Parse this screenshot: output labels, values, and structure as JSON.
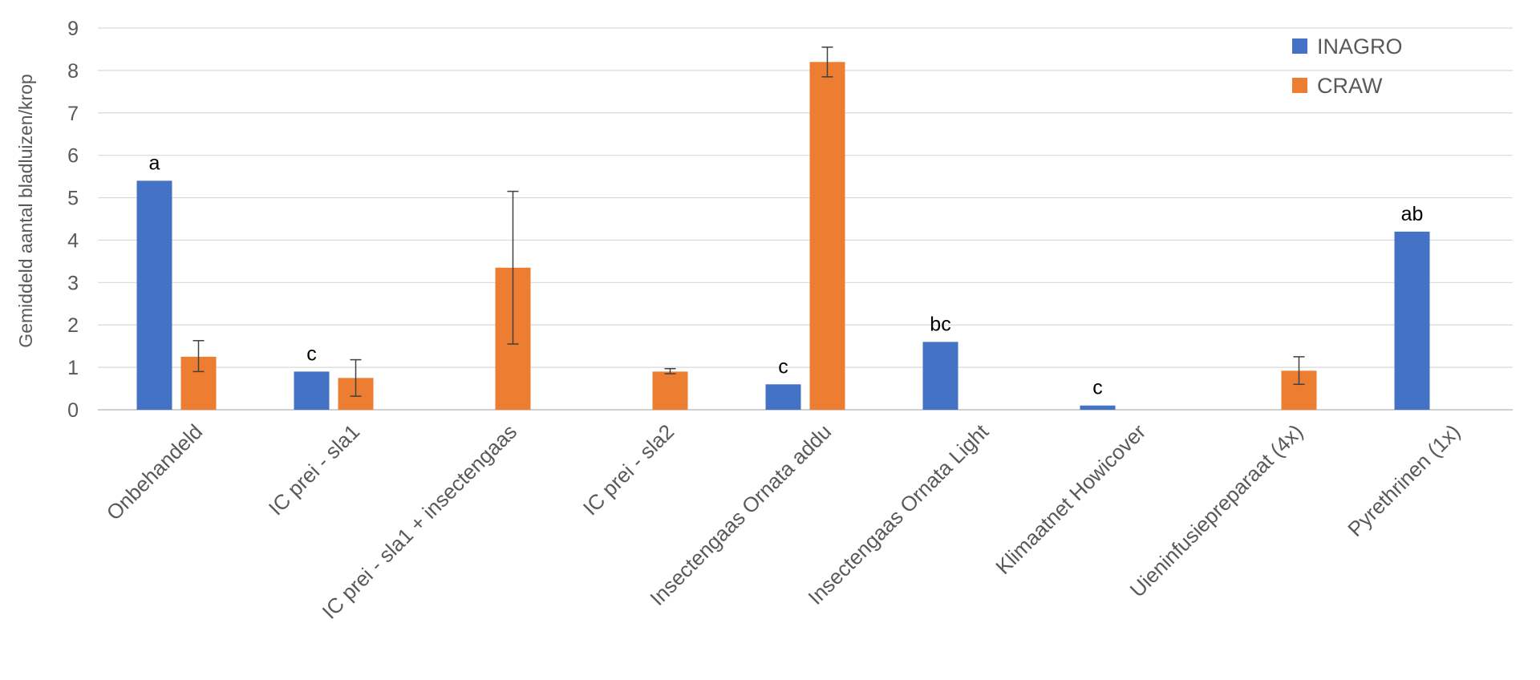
{
  "chart_data": {
    "type": "bar",
    "title": "",
    "xlabel": "",
    "ylabel": "Gemiddeld aantal bladluizen/krop",
    "ylim": [
      0,
      9
    ],
    "yticks": [
      0,
      1,
      2,
      3,
      4,
      5,
      6,
      7,
      8,
      9
    ],
    "grid": true,
    "legend_position": "top-right",
    "categories": [
      "Onbehandeld",
      "IC prei - sla1",
      "IC prei - sla1 + insectengaas",
      "IC prei - sla2",
      "Insectengaas Ornata addu",
      "Insectengaas Ornata Light",
      "Klimaatnet Howicover",
      "Uieninfusiepreparaat (4x)",
      "Pyrethrinen (1x)"
    ],
    "series": [
      {
        "name": "INAGRO",
        "color": "#4472C4",
        "values": [
          5.4,
          0.9,
          null,
          null,
          0.6,
          1.6,
          0.1,
          null,
          4.2
        ],
        "labels": [
          "a",
          "c",
          "",
          "",
          "c",
          "bc",
          "c",
          "",
          "ab"
        ]
      },
      {
        "name": "CRAW",
        "color": "#ED7D31",
        "values": [
          1.25,
          0.75,
          3.35,
          0.9,
          8.2,
          null,
          null,
          0.92,
          null
        ],
        "error_low": [
          0.9,
          0.32,
          1.55,
          0.85,
          7.85,
          null,
          null,
          0.6,
          null
        ],
        "error_high": [
          1.63,
          1.18,
          5.15,
          0.97,
          8.55,
          null,
          null,
          1.25,
          null
        ]
      }
    ]
  }
}
